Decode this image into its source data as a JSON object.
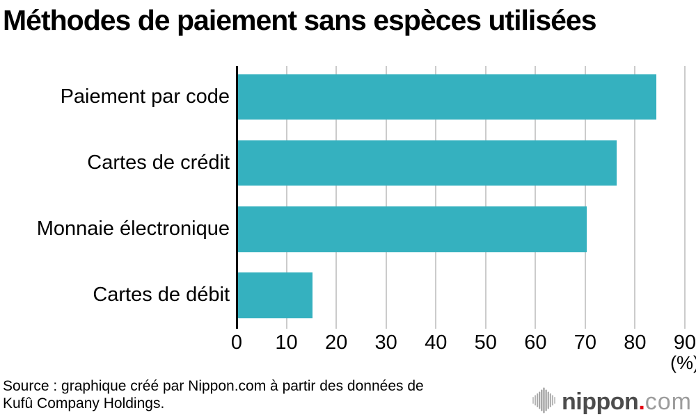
{
  "chart_data": {
    "type": "bar",
    "orientation": "horizontal",
    "title": "Méthodes de paiement sans espèces utilisées",
    "categories": [
      "Paiement par code",
      "Cartes de crédit",
      "Monnaie électronique",
      "Cartes de débit"
    ],
    "values": [
      84,
      76,
      70,
      15
    ],
    "xlabel": "(%)",
    "xlim": [
      0,
      90
    ],
    "xticks": [
      0,
      10,
      20,
      30,
      40,
      50,
      60,
      70,
      80,
      90
    ],
    "grid": true,
    "legend": "none",
    "bar_color": "#35b1bf"
  },
  "source": {
    "line1": "Source : graphique créé par Nippon.com à partir des données de",
    "line2": "Kufû Company Holdings."
  },
  "logo": {
    "name": "nippon",
    "dot": ".",
    "tld": "com",
    "icon": "soundwave-icon"
  },
  "colors": {
    "bar": "#35b1bf",
    "gridline": "#cbcbcb",
    "axis": "#000000",
    "text": "#000000",
    "logo_name": "#4c4c4c",
    "logo_dot": "#e60012",
    "logo_tld": "#9c9c9c"
  }
}
